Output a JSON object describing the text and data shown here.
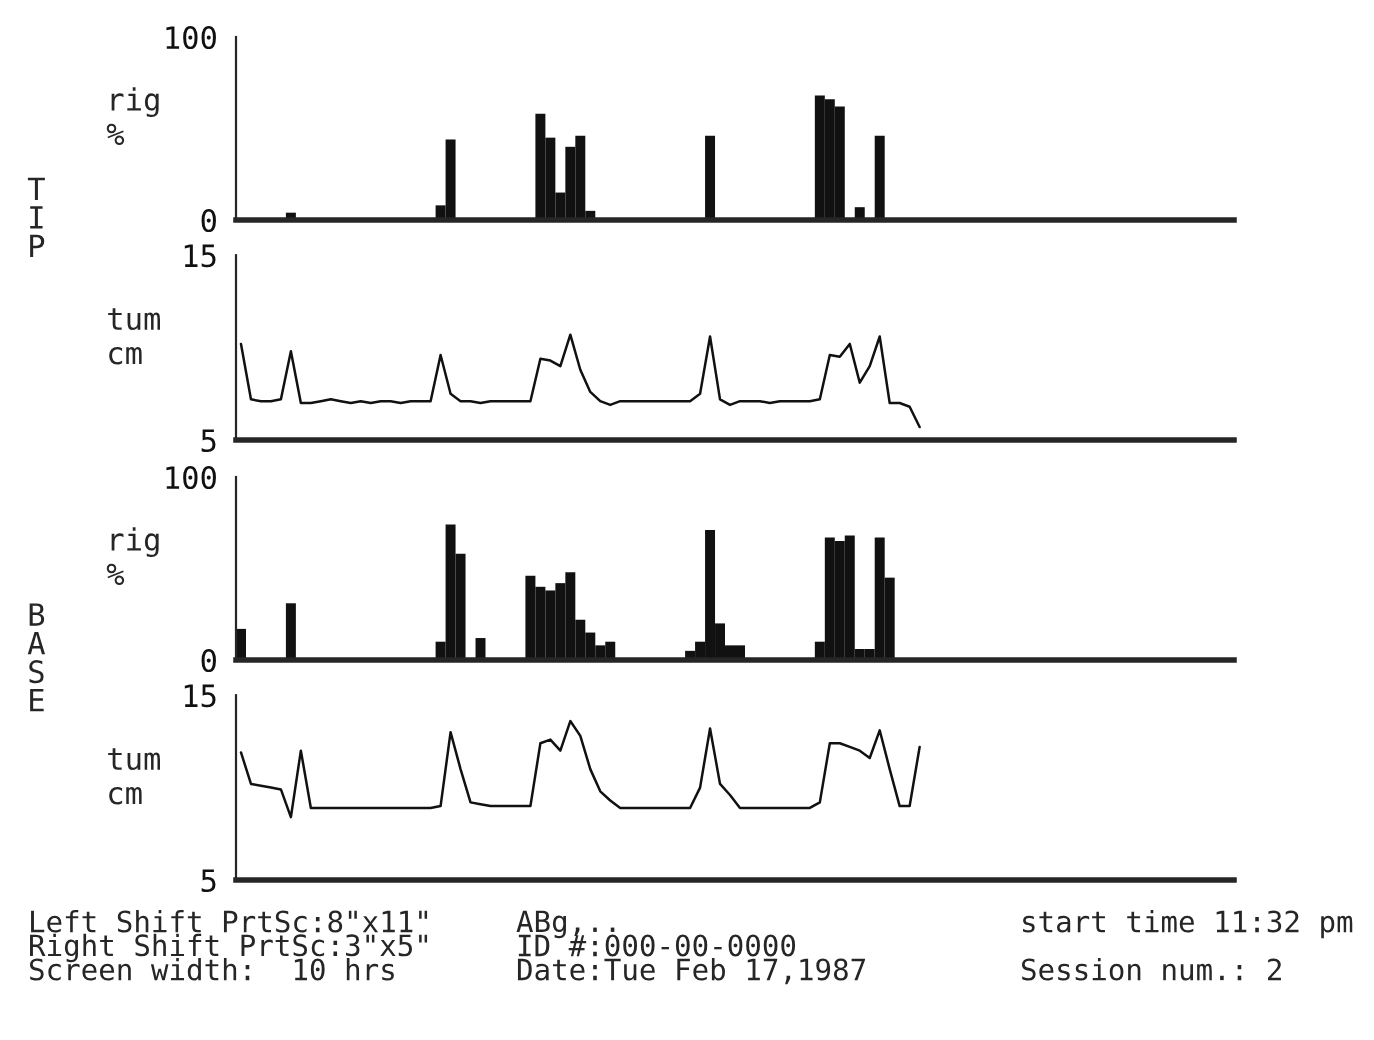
{
  "chart_data": [
    {
      "type": "bar",
      "ylabel": "rig\n%",
      "ylim": [
        0,
        100
      ],
      "yticks": [
        0,
        100
      ],
      "color": "#111111",
      "annotations": [
        "TIP"
      ],
      "categories": [
        null,
        null,
        null,
        null,
        null,
        null,
        null,
        null,
        null,
        null,
        null,
        null,
        null,
        null,
        null,
        null,
        null,
        null,
        null,
        null,
        null,
        null,
        null,
        null,
        null,
        null,
        null,
        null,
        null,
        null,
        null,
        null,
        null,
        null,
        null,
        null,
        null,
        null,
        null,
        null,
        null,
        null,
        null,
        null,
        null,
        null,
        null,
        null,
        null,
        null,
        null,
        null,
        null,
        null,
        null,
        null,
        null,
        null,
        null,
        null,
        null,
        null,
        null,
        null,
        null,
        null,
        null,
        null,
        null,
        null,
        null,
        null,
        null,
        null,
        null,
        null,
        null,
        null,
        null,
        null,
        null,
        null,
        null,
        null,
        null,
        null,
        null,
        null,
        null,
        null,
        null,
        null,
        null,
        null,
        null,
        null,
        null,
        null,
        null,
        null
      ],
      "values": [
        0,
        0,
        0,
        0,
        0,
        4,
        0,
        0,
        0,
        0,
        0,
        0,
        0,
        0,
        0,
        0,
        0,
        0,
        0,
        0,
        8,
        44,
        0,
        0,
        0,
        0,
        0,
        0,
        0,
        0,
        58,
        45,
        15,
        40,
        46,
        5,
        0,
        0,
        0,
        0,
        0,
        0,
        0,
        0,
        0,
        0,
        0,
        46,
        0,
        0,
        0,
        0,
        0,
        0,
        0,
        0,
        0,
        0,
        68,
        66,
        62,
        0,
        7,
        0,
        46,
        0,
        0,
        0,
        0,
        0,
        0,
        0,
        0,
        0,
        0,
        0,
        0,
        0,
        0,
        0,
        0,
        0,
        0,
        0,
        0,
        0,
        0,
        0,
        0,
        0,
        0,
        0,
        0,
        0,
        0,
        0,
        0,
        0,
        0,
        0
      ]
    },
    {
      "type": "line",
      "ylabel": "tum\ncm",
      "ylim": [
        5,
        15
      ],
      "yticks": [
        5,
        15
      ],
      "color": "#111111",
      "categories": [
        null,
        null,
        null,
        null,
        null,
        null,
        null,
        null,
        null,
        null,
        null,
        null,
        null,
        null,
        null,
        null,
        null,
        null,
        null,
        null,
        null,
        null,
        null,
        null,
        null,
        null,
        null,
        null,
        null,
        null,
        null,
        null,
        null,
        null,
        null,
        null,
        null,
        null,
        null,
        null,
        null,
        null,
        null,
        null,
        null,
        null,
        null,
        null,
        null,
        null,
        null,
        null,
        null,
        null,
        null,
        null,
        null,
        null,
        null,
        null,
        null,
        null,
        null,
        null,
        null,
        null,
        null,
        null,
        null,
        null,
        null,
        null,
        null,
        null,
        null,
        null,
        null,
        null,
        null,
        null,
        null,
        null,
        null,
        null,
        null,
        null,
        null,
        null,
        null,
        null,
        null,
        null,
        null,
        null,
        null,
        null,
        null,
        null,
        null,
        null
      ],
      "values": [
        10.2,
        7.2,
        7.1,
        7.1,
        7.2,
        9.8,
        7.0,
        7.0,
        7.1,
        7.2,
        7.1,
        7.0,
        7.1,
        7.0,
        7.1,
        7.1,
        7.0,
        7.1,
        7.1,
        7.1,
        9.6,
        7.5,
        7.1,
        7.1,
        7.0,
        7.1,
        7.1,
        7.1,
        7.1,
        7.1,
        9.4,
        9.3,
        9.0,
        10.7,
        8.8,
        7.6,
        7.1,
        6.9,
        7.1,
        7.1,
        7.1,
        7.1,
        7.1,
        7.1,
        7.1,
        7.1,
        7.5,
        10.6,
        7.2,
        6.9,
        7.1,
        7.1,
        7.1,
        7.0,
        7.1,
        7.1,
        7.1,
        7.1,
        7.2,
        9.6,
        9.5,
        10.2,
        8.1,
        9.0,
        10.6,
        7.0,
        7.0,
        6.8,
        5.7,
        null,
        null,
        null,
        null,
        null,
        null,
        null,
        null,
        null,
        null,
        null,
        null,
        null,
        null,
        null,
        null,
        null,
        null,
        null,
        null,
        null,
        null,
        null,
        null,
        null,
        null,
        null,
        null,
        null,
        null,
        null
      ]
    },
    {
      "type": "bar",
      "ylabel": "rig\n%",
      "ylim": [
        0,
        100
      ],
      "yticks": [
        0,
        100
      ],
      "color": "#111111",
      "annotations": [
        "BASE"
      ],
      "categories": [
        null,
        null,
        null,
        null,
        null,
        null,
        null,
        null,
        null,
        null,
        null,
        null,
        null,
        null,
        null,
        null,
        null,
        null,
        null,
        null,
        null,
        null,
        null,
        null,
        null,
        null,
        null,
        null,
        null,
        null,
        null,
        null,
        null,
        null,
        null,
        null,
        null,
        null,
        null,
        null,
        null,
        null,
        null,
        null,
        null,
        null,
        null,
        null,
        null,
        null,
        null,
        null,
        null,
        null,
        null,
        null,
        null,
        null,
        null,
        null,
        null,
        null,
        null,
        null,
        null,
        null,
        null,
        null,
        null,
        null,
        null,
        null,
        null,
        null,
        null,
        null,
        null,
        null,
        null,
        null,
        null,
        null,
        null,
        null,
        null,
        null,
        null,
        null,
        null,
        null,
        null,
        null,
        null,
        null,
        null,
        null,
        null,
        null,
        null,
        null
      ],
      "values": [
        17,
        0,
        0,
        0,
        0,
        31,
        0,
        0,
        0,
        0,
        0,
        0,
        0,
        0,
        0,
        0,
        0,
        0,
        0,
        0,
        10,
        74,
        58,
        0,
        12,
        0,
        0,
        0,
        0,
        46,
        40,
        38,
        42,
        48,
        22,
        15,
        8,
        10,
        0,
        0,
        0,
        0,
        0,
        0,
        0,
        5,
        10,
        71,
        20,
        8,
        8,
        0,
        0,
        0,
        0,
        0,
        0,
        0,
        10,
        67,
        65,
        68,
        6,
        6,
        67,
        45,
        0,
        0,
        0,
        0,
        0,
        0,
        0,
        0,
        0,
        0,
        0,
        0,
        0,
        0,
        0,
        0,
        0,
        0,
        0,
        0,
        0,
        0,
        0,
        0,
        0,
        0,
        0,
        0,
        0,
        0,
        0,
        0,
        0,
        0
      ]
    },
    {
      "type": "line",
      "ylabel": "tum\ncm",
      "ylim": [
        5,
        15
      ],
      "yticks": [
        5,
        15
      ],
      "color": "#111111",
      "annotations": [
        "Left Shift PrtSc:8\"x11\"",
        "Right Shift PrtSc:3\"x5\"",
        "Screen width:  10 hrs",
        "ABg,..",
        "ID #:000-00-0000",
        "Date:Tue Feb 17,1987",
        "start time 11:32 pm",
        "Session num.: 2"
      ],
      "categories": [
        null,
        null,
        null,
        null,
        null,
        null,
        null,
        null,
        null,
        null,
        null,
        null,
        null,
        null,
        null,
        null,
        null,
        null,
        null,
        null,
        null,
        null,
        null,
        null,
        null,
        null,
        null,
        null,
        null,
        null,
        null,
        null,
        null,
        null,
        null,
        null,
        null,
        null,
        null,
        null,
        null,
        null,
        null,
        null,
        null,
        null,
        null,
        null,
        null,
        null,
        null,
        null,
        null,
        null,
        null,
        null,
        null,
        null,
        null,
        null,
        null,
        null,
        null,
        null,
        null,
        null,
        null,
        null,
        null,
        null,
        null,
        null,
        null,
        null,
        null,
        null,
        null,
        null,
        null,
        null,
        null,
        null,
        null,
        null,
        null,
        null,
        null,
        null,
        null,
        null,
        null,
        null,
        null,
        null,
        null,
        null,
        null,
        null,
        null,
        null
      ],
      "values": [
        11.9,
        10.2,
        10.1,
        10.0,
        9.9,
        8.4,
        12.0,
        8.9,
        8.9,
        8.9,
        8.9,
        8.9,
        8.9,
        8.9,
        8.9,
        8.9,
        8.9,
        8.9,
        8.9,
        8.9,
        9.0,
        13.0,
        11.0,
        9.2,
        9.1,
        9.0,
        9.0,
        9.0,
        9.0,
        9.0,
        12.4,
        12.6,
        12.0,
        13.6,
        12.8,
        11.0,
        9.8,
        9.3,
        8.9,
        8.9,
        8.9,
        8.9,
        8.9,
        8.9,
        8.9,
        8.9,
        10.0,
        13.2,
        10.2,
        9.6,
        8.9,
        8.9,
        8.9,
        8.9,
        8.9,
        8.9,
        8.9,
        8.9,
        9.2,
        12.4,
        12.4,
        12.2,
        12.0,
        11.6,
        13.1,
        11.0,
        9.0,
        9.0,
        12.2,
        null,
        null,
        null,
        null,
        null,
        null,
        null,
        null,
        null,
        null,
        null,
        null,
        null,
        null,
        null,
        null,
        null,
        null,
        null,
        null,
        null,
        null,
        null,
        null,
        null,
        null,
        null,
        null,
        null,
        null,
        null
      ]
    }
  ]
}
